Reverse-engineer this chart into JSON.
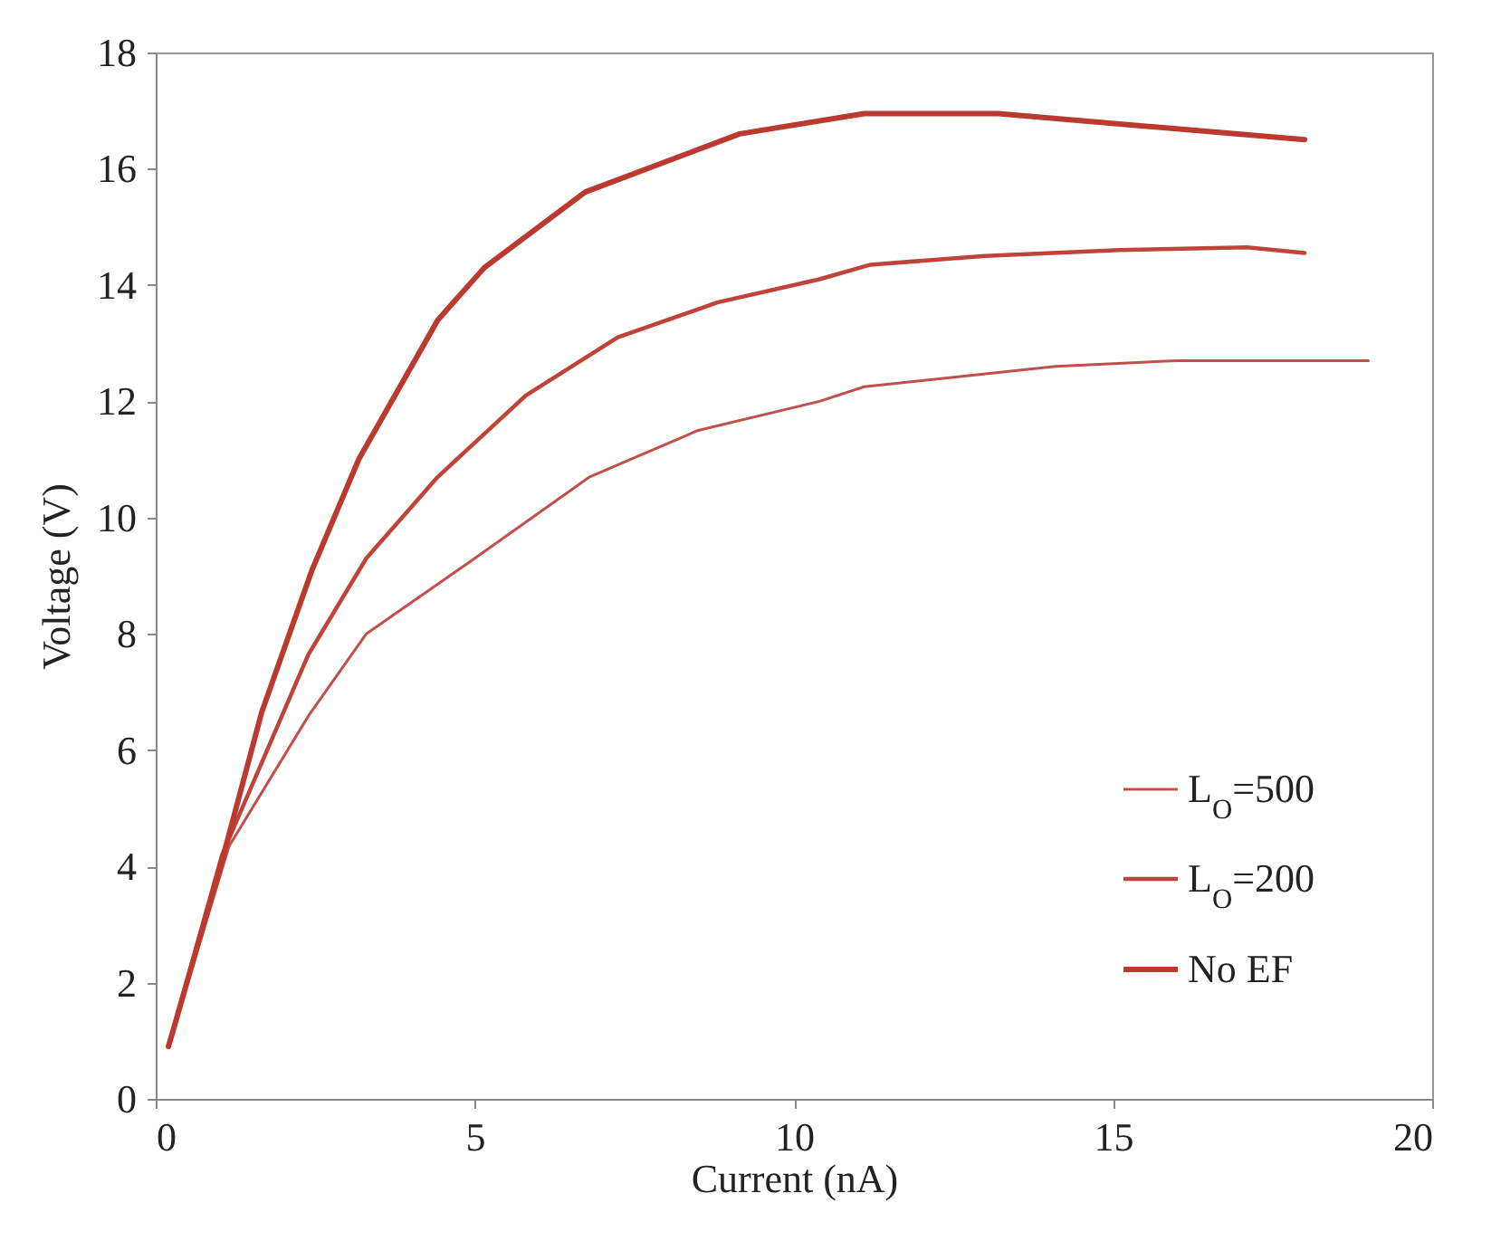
{
  "chart_data": {
    "type": "line",
    "xlabel": "Current (nA)",
    "ylabel": "Voltage (V)",
    "xlim": [
      0,
      20
    ],
    "ylim": [
      0,
      18
    ],
    "xticks": [
      0,
      5,
      10,
      15,
      20
    ],
    "yticks": [
      0,
      2,
      4,
      6,
      8,
      10,
      12,
      14,
      16,
      18
    ],
    "grid": false,
    "legend": "bottom right",
    "marker": "none",
    "line_style": "solid",
    "series": [
      {
        "name": "L$_{O}$=500",
        "color": "#c0504d",
        "x": [
          0.2,
          1.15,
          2.4,
          3.3,
          4.87,
          6.8,
          8.5,
          10.4,
          11.1,
          14.1,
          16.0,
          19.0
        ],
        "values": [
          0.9,
          4.35,
          6.6,
          8.0,
          9.2,
          10.7,
          11.5,
          12.0,
          12.25,
          12.6,
          12.7,
          12.7
        ]
      },
      {
        "name": "L$_{O}$=200",
        "color": "#c0433a",
        "x": [
          0.2,
          1.04,
          2.39,
          3.3,
          4.42,
          5.8,
          7.24,
          8.8,
          10.4,
          11.2,
          13.0,
          15.1,
          17.1,
          18.0
        ],
        "values": [
          0.9,
          4.2,
          7.64,
          9.3,
          10.7,
          12.1,
          13.1,
          13.7,
          14.1,
          14.35,
          14.5,
          14.6,
          14.65,
          14.55
        ]
      },
      {
        "name": "No EF",
        "color": "#bb3a30",
        "x": [
          0.2,
          1.04,
          1.66,
          2.45,
          3.18,
          4.42,
          5.15,
          6.73,
          9.15,
          11.1,
          13.2,
          18.0
        ],
        "values": [
          0.9,
          4.1,
          6.65,
          9.1,
          11.0,
          13.4,
          14.3,
          15.6,
          16.6,
          16.95,
          16.95,
          16.5
        ]
      }
    ]
  }
}
